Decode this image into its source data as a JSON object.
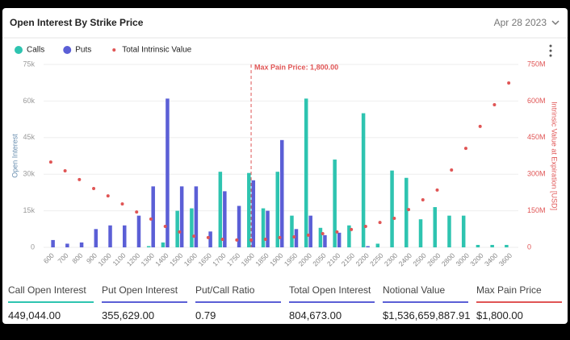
{
  "header": {
    "title": "Open Interest By Strike Price",
    "date": "Apr 28 2023"
  },
  "chart_data": {
    "type": "bar",
    "categories": [
      "600",
      "700",
      "800",
      "900",
      "1000",
      "1100",
      "1200",
      "1300",
      "1400",
      "1500",
      "1600",
      "1650",
      "1700",
      "1750",
      "1800",
      "1850",
      "1900",
      "1950",
      "2000",
      "2050",
      "2100",
      "2150",
      "2200",
      "2250",
      "2300",
      "2400",
      "2500",
      "2600",
      "2800",
      "3000",
      "3200",
      "3400",
      "3600"
    ],
    "series": [
      {
        "name": "Calls",
        "color": "#2ec4b0",
        "values": [
          0,
          0,
          0,
          0,
          0,
          0,
          0,
          500,
          2000,
          15000,
          16000,
          0,
          31000,
          0,
          30500,
          16000,
          31000,
          13000,
          61000,
          8000,
          36000,
          9000,
          55000,
          1500,
          31500,
          28500,
          11500,
          16500,
          13000,
          13000,
          1000,
          1000,
          1000
        ]
      },
      {
        "name": "Puts",
        "color": "#5b5fd6",
        "values": [
          3000,
          1500,
          2000,
          7500,
          9000,
          9000,
          13000,
          25000,
          61000,
          25000,
          25000,
          6500,
          23000,
          17000,
          27500,
          15000,
          44000,
          7500,
          13000,
          5000,
          6000,
          0,
          500,
          0,
          0,
          0,
          0,
          0,
          0,
          0,
          0,
          0,
          0
        ]
      },
      {
        "name": "Total Intrinsic Value",
        "color": "#e05555",
        "type": "scatter",
        "axis": "y2",
        "values": [
          350000000,
          314000000,
          278000000,
          241000000,
          211000000,
          178000000,
          145000000,
          116000000,
          86000000,
          63000000,
          46000000,
          40000000,
          33000000,
          30000000,
          30000000,
          33000000,
          40000000,
          43000000,
          50000000,
          56000000,
          63000000,
          73000000,
          86000000,
          102000000,
          119000000,
          155000000,
          195000000,
          235000000,
          317000000,
          406000000,
          496000000,
          585000000,
          674000000
        ]
      }
    ],
    "ylabel": "Open Interest",
    "y2label": "Intrinsic Value at Expiration [USD]",
    "ylim": [
      0,
      75000
    ],
    "yticks": [
      0,
      {
        "value": 15000,
        "label": "15k"
      },
      {
        "value": 30000,
        "label": "30k"
      },
      {
        "value": 45000,
        "label": "45k"
      },
      {
        "value": 60000,
        "label": "60k"
      },
      {
        "value": 75000,
        "label": "75k"
      }
    ],
    "y2lim": [
      0,
      750000000
    ],
    "y2ticks": [
      0,
      {
        "value": 150000000,
        "label": "150M"
      },
      {
        "value": 300000000,
        "label": "300M"
      },
      {
        "value": 450000000,
        "label": "450M"
      },
      {
        "value": 600000000,
        "label": "600M"
      },
      {
        "value": 750000000,
        "label": "750M"
      }
    ],
    "grid": true,
    "legend": "top-left",
    "annotation": {
      "text": "Max Pain Price: 1,800.00",
      "category": "1800",
      "color": "#e05555"
    }
  },
  "stats": [
    {
      "label": "Call Open Interest",
      "value": "449,044.00",
      "color": "#2ec4b0"
    },
    {
      "label": "Put Open Interest",
      "value": "355,629.00",
      "color": "#5b5fd6"
    },
    {
      "label": "Put/Call Ratio",
      "value": "0.79",
      "color": "#5b5fd6"
    },
    {
      "label": "Total Open Interest",
      "value": "804,673.00",
      "color": "#5b5fd6"
    },
    {
      "label": "Notional Value",
      "value": "$1,536,659,887.91",
      "color": "#5b5fd6"
    },
    {
      "label": "Max Pain Price",
      "value": "$1,800.00",
      "color": "#e05555"
    }
  ]
}
